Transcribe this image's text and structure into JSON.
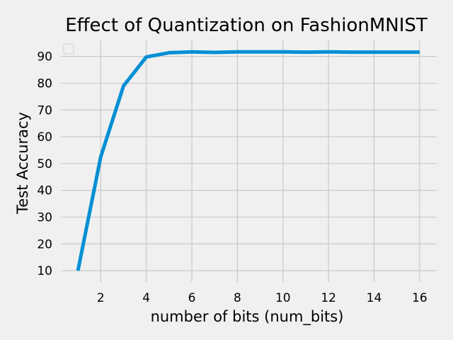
{
  "chart_data": {
    "type": "line",
    "title": "Effect of Quantization on FashionMNIST",
    "xlabel": "number of bits (num_bits)",
    "ylabel": "Test Accuracy",
    "xlim": [
      0.25,
      16.75
    ],
    "ylim": [
      5.8,
      96.0
    ],
    "xticks": [
      2,
      4,
      6,
      8,
      10,
      12,
      14,
      16
    ],
    "yticks": [
      10,
      20,
      30,
      40,
      50,
      60,
      70,
      80,
      90
    ],
    "grid": true,
    "legend": "top-left (empty)",
    "series": [
      {
        "color": "#008fd5",
        "x": [
          1,
          2,
          3,
          4,
          5,
          6,
          7,
          8,
          9,
          10,
          11,
          12,
          13,
          14,
          15,
          16
        ],
        "y": [
          10.0,
          52.5,
          79.0,
          89.8,
          91.4,
          91.7,
          91.5,
          91.7,
          91.7,
          91.7,
          91.6,
          91.7,
          91.6,
          91.6,
          91.6,
          91.6
        ]
      }
    ]
  }
}
